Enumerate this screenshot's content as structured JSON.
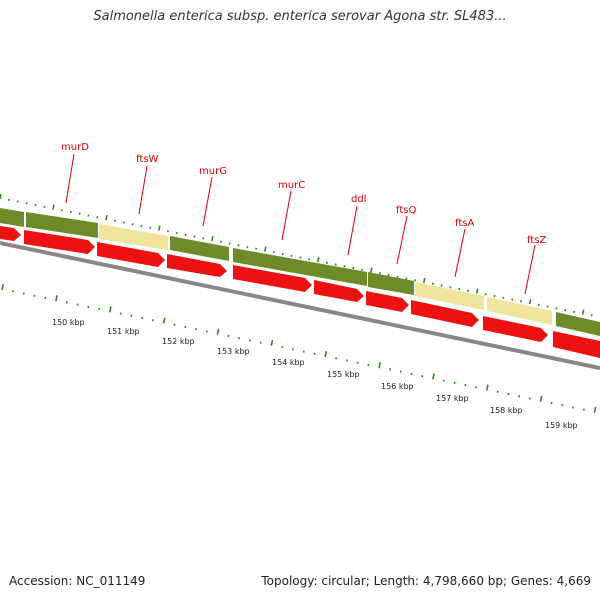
{
  "title": "Salmonella enterica subsp. enterica serovar Agona str. SL483...",
  "footer": {
    "accession": "Accession: NC_011149",
    "stats": "Topology: circular; Length: 4,798,660 bp; Genes: 4,669"
  },
  "gene_labels": [
    "murD",
    "ftsW",
    "murG",
    "murC",
    "ddl",
    "ftsQ",
    "ftsA",
    "ftsZ"
  ],
  "kbp_labels": [
    "150 kbp",
    "151 kbp",
    "152 kbp",
    "153 kbp",
    "154 kbp",
    "155 kbp",
    "156 kbp",
    "157 kbp",
    "158 kbp",
    "159 kbp"
  ],
  "colors": {
    "cds_feature": "#6e8b2a",
    "cds_feature_alt": "#efe49a",
    "orf_arrow": "#ee1111",
    "backbone": "#888888",
    "tick": "#2e8b1e",
    "label": "#dd0000"
  }
}
